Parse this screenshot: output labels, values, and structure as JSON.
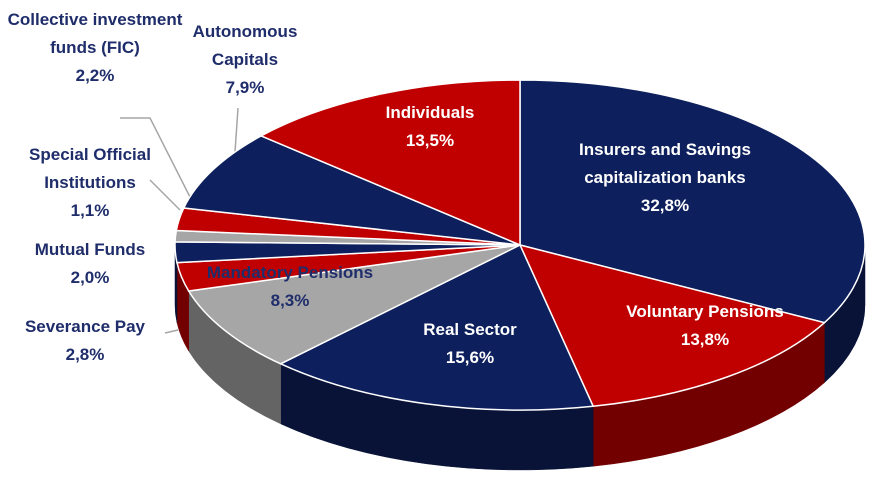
{
  "chart_data": {
    "type": "pie",
    "categories": [
      "Insurers and Savings capitalization banks",
      "Voluntary Pensions",
      "Real Sector",
      "Mandatory Pensions",
      "Severance Pay",
      "Mutual Funds",
      "Special Official Institutions",
      "Collective investment funds (FIC)",
      "Autonomous Capitals",
      "Individuals"
    ],
    "values": [
      32.8,
      13.8,
      15.6,
      8.3,
      2.8,
      2.0,
      1.1,
      2.2,
      7.9,
      13.5
    ],
    "value_labels": [
      "32,8%",
      "13,8%",
      "15,6%",
      "8,3%",
      "2,8%",
      "2,0%",
      "1,1%",
      "2,2%",
      "7,9%",
      "13,5%"
    ],
    "colors": [
      "#0d1f5c",
      "#c00000",
      "#0d1f5c",
      "#a6a6a6",
      "#c00000",
      "#0d1f5c",
      "#a6a6a6",
      "#c00000",
      "#0d1f5c",
      "#c00000"
    ]
  }
}
